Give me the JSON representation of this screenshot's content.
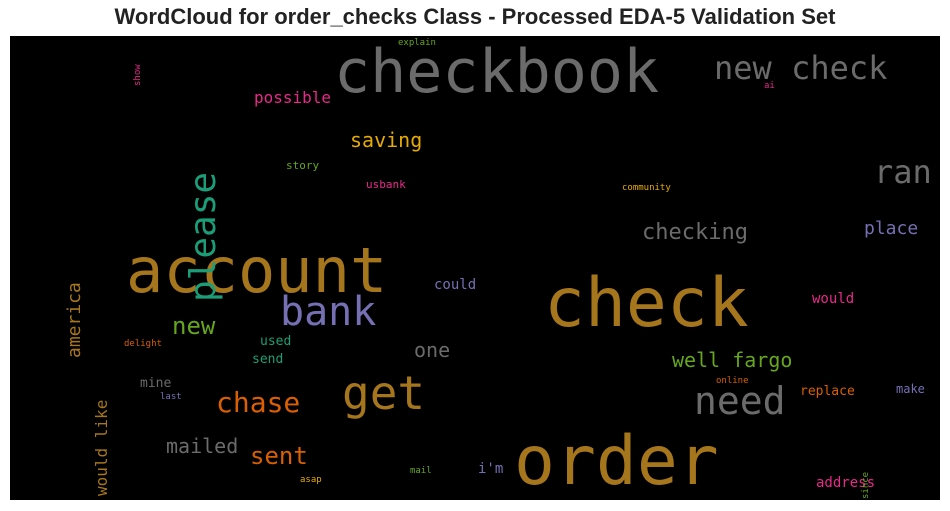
{
  "title": "WordCloud for order_checks Class - Processed EDA-5 Validation Set",
  "chart_data": {
    "type": "wordcloud",
    "title": "WordCloud for order_checks Class - Processed EDA-5 Validation Set",
    "background": "#000000",
    "palette": [
      "#b8802a",
      "#6b6b6b",
      "#1b9e77",
      "#d95f02",
      "#7570b3",
      "#e7298a",
      "#66a61e",
      "#e6ab02",
      "#a6761d"
    ],
    "words": [
      {
        "text": "checkbook",
        "color": "#6b6b6b",
        "vertical": false
      },
      {
        "text": "order",
        "color": "#a6761d",
        "vertical": false
      },
      {
        "text": "check",
        "color": "#a6761d",
        "vertical": false
      },
      {
        "text": "account",
        "color": "#a6761d",
        "vertical": false
      },
      {
        "text": "bank",
        "color": "#7570b3",
        "vertical": false
      },
      {
        "text": "get",
        "color": "#a6761d",
        "vertical": false
      },
      {
        "text": "need",
        "color": "#6b6b6b",
        "vertical": false
      },
      {
        "text": "new check",
        "color": "#6b6b6b",
        "vertical": false
      },
      {
        "text": "please",
        "color": "#1b9e77",
        "vertical": true
      },
      {
        "text": "ran",
        "color": "#6b6b6b",
        "vertical": false
      },
      {
        "text": "chase",
        "color": "#d95f02",
        "vertical": false
      },
      {
        "text": "sent",
        "color": "#d95f02",
        "vertical": false
      },
      {
        "text": "new",
        "color": "#66a61e",
        "vertical": false
      },
      {
        "text": "checking",
        "color": "#6b6b6b",
        "vertical": false
      },
      {
        "text": "well fargo",
        "color": "#66a61e",
        "vertical": false
      },
      {
        "text": "mailed",
        "color": "#6b6b6b",
        "vertical": false
      },
      {
        "text": "saving",
        "color": "#e6ab02",
        "vertical": false
      },
      {
        "text": "one",
        "color": "#6b6b6b",
        "vertical": false
      },
      {
        "text": "america",
        "color": "#a6761d",
        "vertical": true
      },
      {
        "text": "would like",
        "color": "#a6761d",
        "vertical": true
      },
      {
        "text": "place",
        "color": "#7570b3",
        "vertical": false
      },
      {
        "text": "possible",
        "color": "#e7298a",
        "vertical": false
      },
      {
        "text": "would",
        "color": "#e7298a",
        "vertical": false
      },
      {
        "text": "could",
        "color": "#7570b3",
        "vertical": false
      },
      {
        "text": "address",
        "color": "#e7298a",
        "vertical": false
      },
      {
        "text": "i'm",
        "color": "#7570b3",
        "vertical": false
      },
      {
        "text": "replace",
        "color": "#d95f02",
        "vertical": false
      },
      {
        "text": "make",
        "color": "#7570b3",
        "vertical": false
      },
      {
        "text": "used",
        "color": "#1b9e77",
        "vertical": false
      },
      {
        "text": "send",
        "color": "#1b9e77",
        "vertical": false
      },
      {
        "text": "mine",
        "color": "#6b6b6b",
        "vertical": false
      },
      {
        "text": "story",
        "color": "#66a61e",
        "vertical": false
      },
      {
        "text": "usbank",
        "color": "#e7298a",
        "vertical": false
      },
      {
        "text": "community",
        "color": "#e6ab02",
        "vertical": false
      },
      {
        "text": "explain",
        "color": "#66a61e",
        "vertical": false
      },
      {
        "text": "ai",
        "color": "#e7298a",
        "vertical": false
      },
      {
        "text": "show",
        "color": "#e7298a",
        "vertical": true
      },
      {
        "text": "delight",
        "color": "#d95f02",
        "vertical": false
      },
      {
        "text": "last",
        "color": "#7570b3",
        "vertical": false
      },
      {
        "text": "online",
        "color": "#d95f02",
        "vertical": false
      },
      {
        "text": "since",
        "color": "#66a61e",
        "vertical": true
      },
      {
        "text": "mail",
        "color": "#66a61e",
        "vertical": false
      },
      {
        "text": "asap",
        "color": "#e6ab02",
        "vertical": false
      }
    ]
  }
}
